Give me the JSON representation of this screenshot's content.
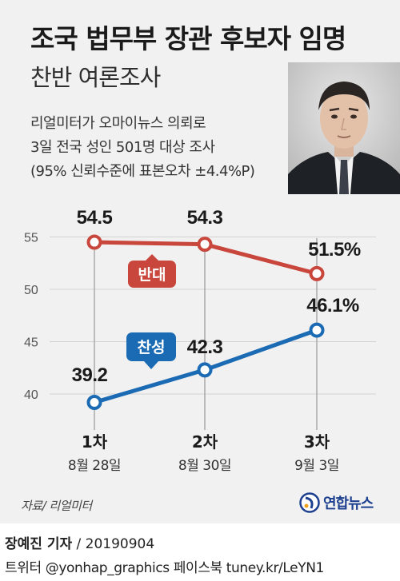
{
  "header": {
    "title": "조국 법무부 장관 후보자 임명",
    "subtitle": "찬반 여론조사",
    "notes": [
      "리얼미터가 오마이뉴스 의뢰로",
      "3일 전국 성인 501명 대상 조사",
      "(95% 신뢰수준에 표본오차 ±4.4%P)"
    ]
  },
  "chart_data": {
    "type": "line",
    "categories": [
      "1차",
      "2차",
      "3차"
    ],
    "dates": [
      "8월 28일",
      "8월 30일",
      "9월 3일"
    ],
    "series": [
      {
        "name": "반대",
        "values": [
          54.5,
          54.3,
          51.5
        ],
        "labels": [
          "54.5",
          "54.3",
          "51.5%"
        ],
        "color": "#c8463b"
      },
      {
        "name": "찬성",
        "values": [
          39.2,
          42.3,
          46.1
        ],
        "labels": [
          "39.2",
          "42.3",
          "46.1%"
        ],
        "color": "#1a6ab4"
      }
    ],
    "yticks": [
      40,
      45,
      50,
      55
    ],
    "ylim": [
      37,
      58
    ],
    "grid": true
  },
  "footer": {
    "source": "자료/ 리얼미터",
    "agency": "연합뉴스",
    "reporter": "장예진 기자",
    "date": " / 20190904",
    "contact": "트위터 @yonhap_graphics  페이스북 tuney.kr/LeYN1"
  },
  "colors": {
    "against": "#c8463b",
    "for": "#1a6ab4",
    "background": "#f1f1f1"
  },
  "icons": {
    "agency_logo": "yonhap-globe-icon",
    "portrait": "person-portrait-icon"
  }
}
